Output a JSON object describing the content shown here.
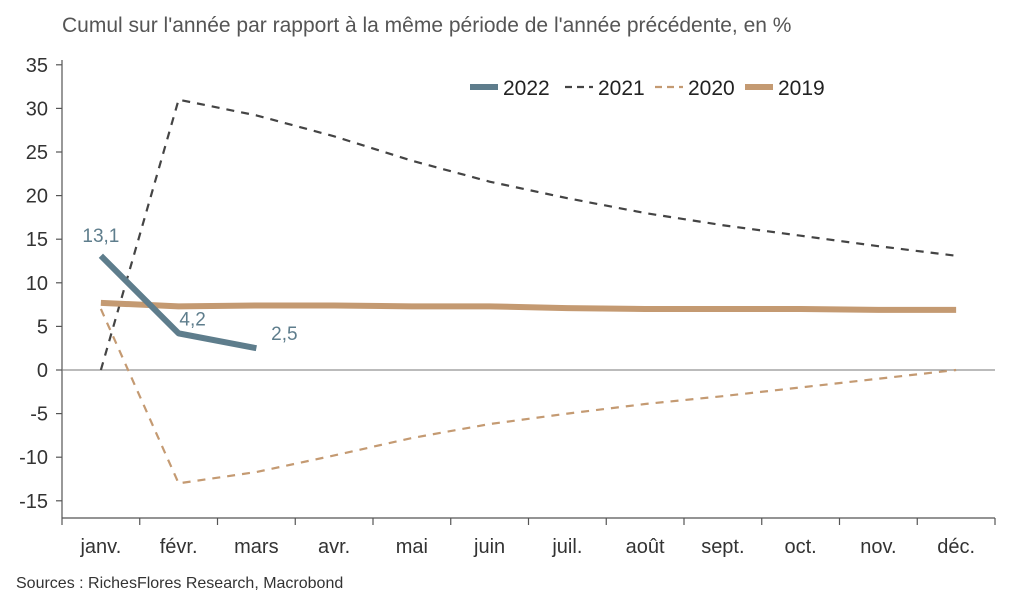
{
  "chart_data": {
    "type": "line",
    "title": "Cumul sur l'année par rapport à la même période de l'année précédente, en %",
    "xlabel": "",
    "ylabel": "",
    "categories": [
      "janv.",
      "févr.",
      "mars",
      "avr.",
      "mai",
      "juin",
      "juil.",
      "août",
      "sept.",
      "oct.",
      "nov.",
      "déc."
    ],
    "ylim": [
      -17,
      37
    ],
    "yticks": [
      35,
      30,
      25,
      20,
      15,
      10,
      5,
      0,
      -5,
      -10,
      -15
    ],
    "grid": false,
    "legend_position": "top-right",
    "series": [
      {
        "name": "2022",
        "color": "#5e7d8c",
        "style": "solid-thick",
        "values": [
          13.1,
          4.2,
          2.5,
          null,
          null,
          null,
          null,
          null,
          null,
          null,
          null,
          null
        ],
        "labels": [
          "13,1",
          "4,2",
          "2,5"
        ]
      },
      {
        "name": "2021",
        "color": "#444444",
        "style": "dashed",
        "values": [
          0,
          31.0,
          29.2,
          26.8,
          24.0,
          21.6,
          19.7,
          18.0,
          16.6,
          15.4,
          14.2,
          13.1
        ]
      },
      {
        "name": "2020",
        "color": "#c49a72",
        "style": "dashed",
        "values": [
          7.0,
          -13.0,
          -11.7,
          -9.8,
          -7.8,
          -6.2,
          -5.0,
          -3.9,
          -3.0,
          -2.0,
          -1.0,
          0
        ]
      },
      {
        "name": "2019",
        "color": "#c49a72",
        "style": "solid-thick",
        "values": [
          7.7,
          7.3,
          7.4,
          7.4,
          7.3,
          7.3,
          7.1,
          7.0,
          7.0,
          7.0,
          6.9,
          6.9
        ]
      }
    ]
  },
  "footer": {
    "source": "Sources : RichesFlores Research, Macrobond"
  }
}
